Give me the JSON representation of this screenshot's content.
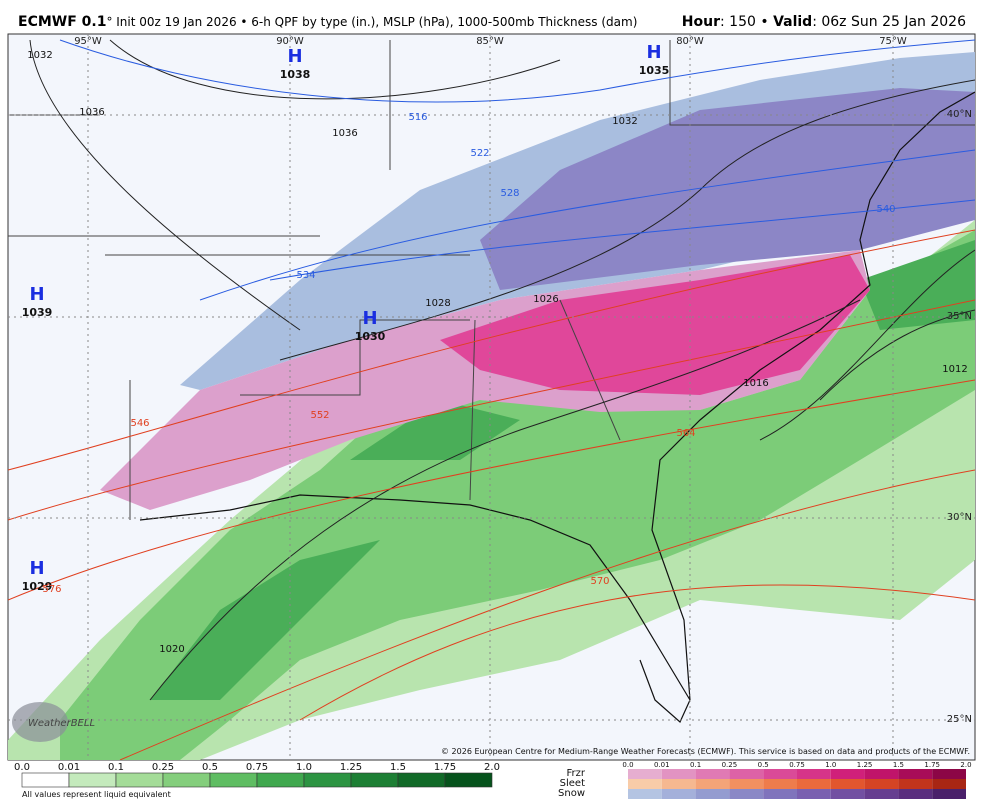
{
  "header": {
    "model": "ECMWF 0.1",
    "description": "° Init 00z 19 Jan 2026 • 6-h QPF by type (in.), MSLP (hPa), 1000-500mb Thickness (dam)",
    "hour_label": "Hour",
    "hour_value": ": 150 • ",
    "valid_label": "Valid",
    "valid_value": ": 06z Sun 25 Jan 2026"
  },
  "map": {
    "longitudes": [
      "95°W",
      "90°W",
      "85°W",
      "80°W",
      "75°W"
    ],
    "latitudes": [
      "40°N",
      "35°N",
      "30°N",
      "25°N"
    ],
    "highs": [
      {
        "symbol": "H",
        "pressure": "1038"
      },
      {
        "symbol": "H",
        "pressure": "1035"
      },
      {
        "symbol": "H",
        "pressure": "1039"
      },
      {
        "symbol": "H",
        "pressure": "1030"
      },
      {
        "symbol": "H",
        "pressure": "1029"
      }
    ],
    "isobar_labels": [
      "1032",
      "1036",
      "1036",
      "1032",
      "1028",
      "1026",
      "1016",
      "1012",
      "1020"
    ],
    "thickness_labels": [
      "516",
      "522",
      "528",
      "534",
      "540",
      "546",
      "552",
      "564",
      "570",
      "576"
    ],
    "logo": "WeatherBELL",
    "copyright": "© 2026 European Centre for Medium-Range Weather Forecasts (ECMWF). This service is based on data and products of the ECMWF."
  },
  "legend": {
    "rain_ticks": [
      "0.0",
      "0.01",
      "0.1",
      "0.25",
      "0.5",
      "0.75",
      "1.0",
      "1.25",
      "1.5",
      "1.75",
      "2.0"
    ],
    "rain_colors": [
      "#ffffff",
      "#c4eabc",
      "#a4dc98",
      "#84ce7c",
      "#5fbd62",
      "#40a84e",
      "#2c9442",
      "#1d7f34",
      "#116a28",
      "#06531c"
    ],
    "note": "All values represent liquid equivalent",
    "mixed_ticks": [
      "0.0",
      "0.01",
      "0.1",
      "0.25",
      "0.5",
      "0.75",
      "1.0",
      "1.25",
      "1.5",
      "1.75",
      "2.0"
    ],
    "rows": [
      {
        "name": "Frzr",
        "colors": [
          "#e6aed0",
          "#e293c2",
          "#e07ab4",
          "#dd62a6",
          "#da4a98",
          "#d63489",
          "#d0207a",
          "#c0146a",
          "#a80c58",
          "#8c0646"
        ]
      },
      {
        "name": "Sleet",
        "colors": [
          "#f8cca8",
          "#f6b890",
          "#f4a478",
          "#f29060",
          "#ee7c4c",
          "#ea6a3c",
          "#e2562e",
          "#d44424",
          "#c2341c",
          "#a82614"
        ]
      },
      {
        "name": "Snow",
        "colors": [
          "#b4c4e2",
          "#a4b0da",
          "#949cd0",
          "#8a88c6",
          "#8074bc",
          "#7a60b0",
          "#7250a2",
          "#663e90",
          "#5a2e7e",
          "#4a206a"
        ]
      }
    ]
  }
}
